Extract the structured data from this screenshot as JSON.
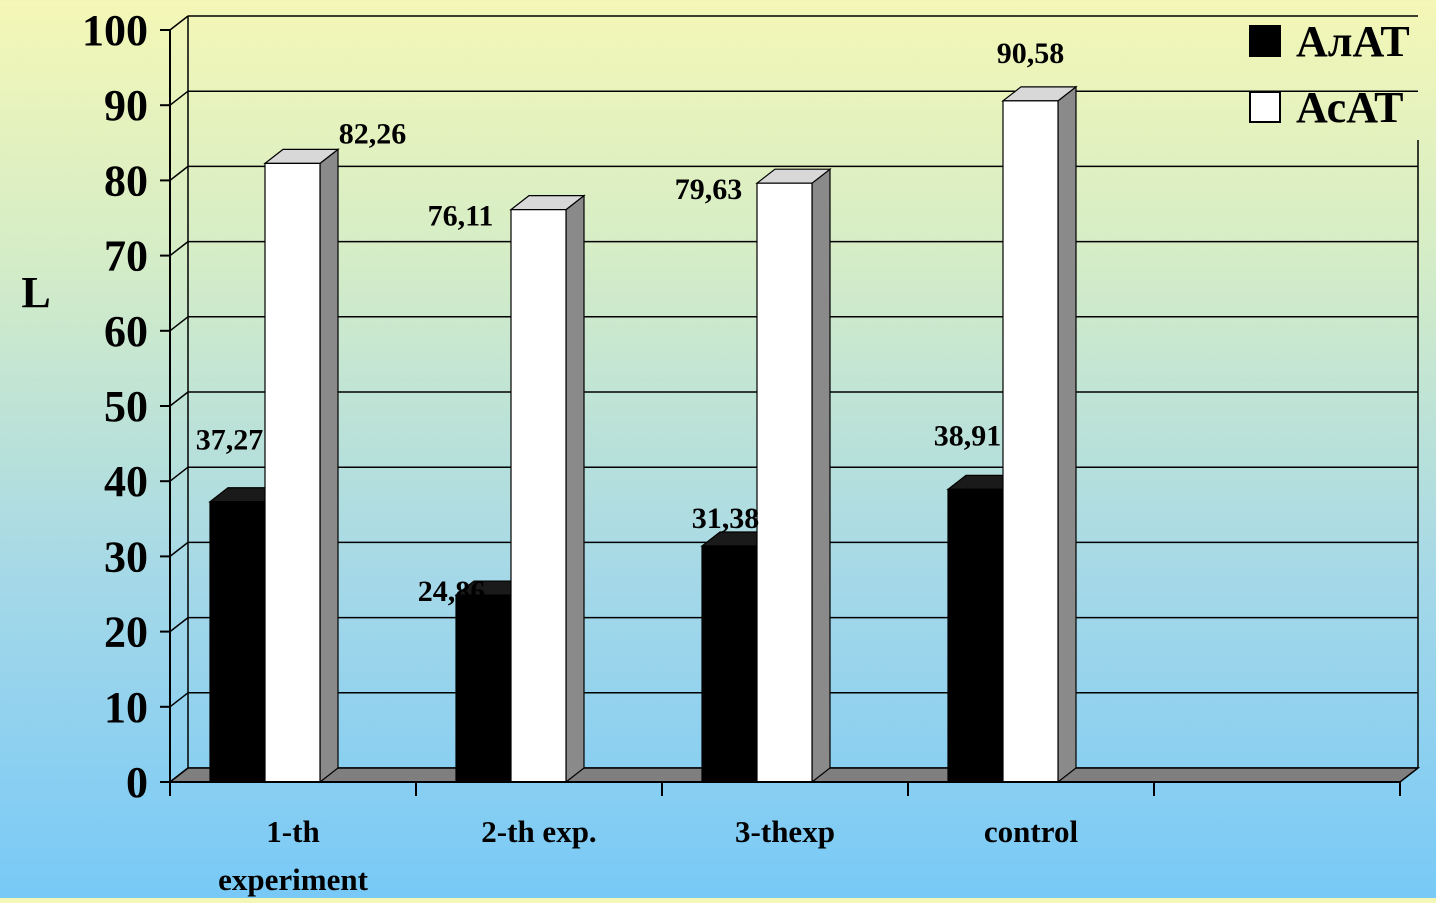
{
  "chart_data": {
    "type": "bar",
    "categories": [
      "1-th experiment",
      "2-th exp.",
      "3-thexp",
      "control"
    ],
    "category_lines": [
      [
        "1-th",
        "experiment"
      ],
      [
        "2-th exp."
      ],
      [
        "3-thexp"
      ],
      [
        "control"
      ]
    ],
    "series": [
      {
        "name": "АлАТ",
        "values": [
          37.27,
          24.86,
          31.38,
          38.91
        ],
        "labels": [
          "37,27",
          "24,86",
          "31,38",
          "38,91"
        ],
        "color": "#000000"
      },
      {
        "name": "АсАТ",
        "values": [
          82.26,
          76.11,
          79.63,
          90.58
        ],
        "labels": [
          "82,26",
          "76,11",
          "79,63",
          "90,58"
        ],
        "color": "#ffffff"
      }
    ],
    "ylabel": "L",
    "xlabel": "",
    "ylim": [
      0,
      100
    ],
    "yticks": [
      "0",
      "10",
      "20",
      "30",
      "40",
      "50",
      "60",
      "70",
      "80",
      "90",
      "100"
    ],
    "grid": true,
    "style": "3d-clustered-column",
    "legend_position": "top-right"
  },
  "colors": {
    "background_top": "#f4f7b6",
    "background_bottom": "#78c9f7",
    "bar_side": "#8a8a8a",
    "floor": "#7f7f7f"
  }
}
